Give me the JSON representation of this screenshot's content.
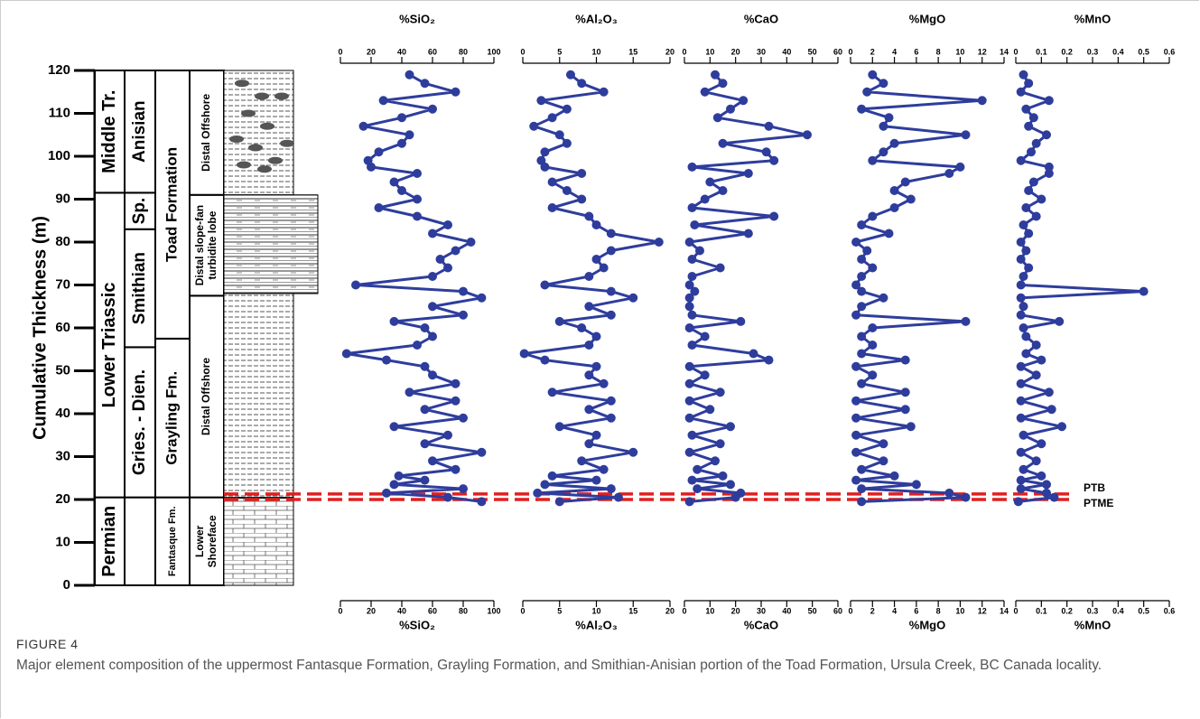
{
  "chart_data": [
    {
      "type": "line",
      "title": "%SiO₂",
      "color": "#2e3d9c",
      "xlim": [
        0,
        100
      ],
      "xticks": [
        0,
        20,
        40,
        60,
        80,
        100
      ],
      "ylim": [
        0,
        120
      ],
      "y": [
        19.5,
        20.5,
        21.5,
        22.5,
        23.5,
        24.5,
        25.5,
        27,
        29,
        31,
        33,
        35,
        37,
        39,
        41,
        43,
        45,
        47,
        49,
        51,
        52.5,
        54,
        56,
        58,
        60,
        61.5,
        63,
        65,
        67,
        68.5,
        70,
        72,
        74,
        76,
        78,
        80,
        82,
        84,
        86,
        88,
        90,
        92,
        94,
        96,
        97.5,
        99,
        101,
        103,
        105,
        107,
        109,
        111,
        113,
        115,
        117,
        119
      ],
      "values": [
        92,
        70,
        30,
        80,
        35,
        55,
        38,
        75,
        60,
        92,
        55,
        70,
        35,
        80,
        55,
        75,
        45,
        75,
        60,
        55,
        30,
        4,
        50,
        60,
        55,
        35,
        80,
        60,
        92,
        80,
        10,
        60,
        70,
        65,
        75,
        85,
        60,
        70,
        50,
        25,
        50,
        40,
        35,
        50,
        20,
        18,
        25,
        40,
        45,
        15,
        40,
        60,
        28,
        75,
        55,
        45
      ]
    },
    {
      "type": "line",
      "title": "%Al₂O₃",
      "color": "#2e3d9c",
      "xlim": [
        0,
        20
      ],
      "xticks": [
        0,
        5,
        10,
        15,
        20
      ],
      "ylim": [
        0,
        120
      ],
      "y": [
        19.5,
        20.5,
        21.5,
        22.5,
        23.5,
        24.5,
        25.5,
        27,
        29,
        31,
        33,
        35,
        37,
        39,
        41,
        43,
        45,
        47,
        49,
        51,
        52.5,
        54,
        56,
        58,
        60,
        61.5,
        63,
        65,
        67,
        68.5,
        70,
        72,
        74,
        76,
        78,
        80,
        82,
        84,
        86,
        88,
        90,
        92,
        94,
        96,
        97.5,
        99,
        101,
        103,
        105,
        107,
        109,
        111,
        113,
        115,
        117,
        119
      ],
      "values": [
        5,
        13,
        2,
        12,
        3,
        10,
        4,
        11,
        8,
        15,
        9,
        10,
        5,
        12,
        9,
        12,
        4,
        11,
        9,
        10,
        3,
        0.2,
        9,
        10,
        8,
        5,
        12,
        9,
        15,
        12,
        3,
        9,
        11,
        10,
        12,
        18.5,
        12,
        10,
        9,
        4,
        8,
        6,
        4,
        8,
        3,
        2.5,
        3,
        6,
        5,
        1.5,
        4,
        6,
        2.5,
        11,
        8,
        6.5
      ]
    },
    {
      "type": "line",
      "title": "%CaO",
      "color": "#2e3d9c",
      "xlim": [
        0,
        60
      ],
      "xticks": [
        0,
        10,
        20,
        30,
        40,
        50,
        60
      ],
      "ylim": [
        0,
        120
      ],
      "y": [
        19.5,
        20.5,
        21.5,
        22.5,
        23.5,
        24.5,
        25.5,
        27,
        29,
        31,
        33,
        35,
        37,
        39,
        41,
        43,
        45,
        47,
        49,
        51,
        52.5,
        54,
        56,
        58,
        60,
        61.5,
        63,
        65,
        67,
        68.5,
        70,
        72,
        74,
        76,
        78,
        80,
        82,
        84,
        86,
        88,
        90,
        92,
        94,
        96,
        97.5,
        99,
        101,
        103,
        105,
        107,
        109,
        111,
        113,
        115,
        117,
        119
      ],
      "values": [
        2,
        20,
        22,
        5,
        18,
        3,
        15,
        5,
        12,
        2,
        14,
        3,
        18,
        2,
        10,
        2,
        14,
        2,
        8,
        2,
        33,
        27,
        3,
        8,
        2,
        22,
        3,
        2,
        2,
        4,
        2,
        3,
        14,
        3,
        6,
        2,
        25,
        4,
        35,
        3,
        8,
        15,
        10,
        25,
        3,
        35,
        32,
        15,
        48,
        33,
        13,
        18,
        23,
        8,
        15,
        12
      ]
    },
    {
      "type": "line",
      "title": "%MgO",
      "color": "#2e3d9c",
      "xlim": [
        0,
        14
      ],
      "xticks": [
        0,
        2,
        4,
        6,
        8,
        10,
        12,
        14
      ],
      "ylim": [
        0,
        120
      ],
      "y": [
        19.5,
        20.5,
        21.5,
        22.5,
        23.5,
        24.5,
        25.5,
        27,
        29,
        31,
        33,
        35,
        37,
        39,
        41,
        43,
        45,
        47,
        49,
        51,
        52.5,
        54,
        56,
        58,
        60,
        61.5,
        63,
        65,
        67,
        68.5,
        70,
        72,
        74,
        76,
        78,
        80,
        82,
        84,
        86,
        88,
        90,
        92,
        94,
        96,
        97.5,
        99,
        101,
        103,
        105,
        107,
        109,
        111,
        113,
        115,
        117,
        119
      ],
      "values": [
        1,
        10.5,
        9,
        1,
        6,
        0.5,
        4,
        1,
        3,
        0.5,
        3,
        0.5,
        5.5,
        0.5,
        5,
        0.5,
        5,
        1,
        2,
        0.5,
        5,
        1,
        2,
        1,
        2,
        10.5,
        0.5,
        1,
        3,
        1,
        0.5,
        1,
        2,
        1,
        1.5,
        0.5,
        3.5,
        1,
        2,
        4,
        5.5,
        4,
        5,
        9,
        10,
        2,
        3,
        4,
        10.5,
        3,
        3.5,
        1,
        12,
        1.5,
        3,
        2
      ]
    },
    {
      "type": "line",
      "title": "%MnO",
      "color": "#2e3d9c",
      "xlim": [
        0,
        0.6
      ],
      "xticks": [
        0,
        0.1,
        0.2,
        0.3,
        0.4,
        0.5,
        0.6
      ],
      "ylim": [
        0,
        120
      ],
      "y": [
        19.5,
        20.5,
        21.5,
        22.5,
        23.5,
        24.5,
        25.5,
        27,
        29,
        31,
        33,
        35,
        37,
        39,
        41,
        43,
        45,
        47,
        49,
        51,
        52.5,
        54,
        56,
        58,
        60,
        61.5,
        63,
        65,
        67,
        68.5,
        70,
        72,
        74,
        76,
        78,
        80,
        82,
        84,
        86,
        88,
        90,
        92,
        94,
        96,
        97.5,
        99,
        101,
        103,
        105,
        107,
        109,
        111,
        113,
        115,
        117,
        119
      ],
      "values": [
        0.01,
        0.15,
        0.12,
        0.02,
        0.12,
        0.02,
        0.1,
        0.03,
        0.08,
        0.02,
        0.1,
        0.03,
        0.18,
        0.02,
        0.14,
        0.02,
        0.13,
        0.02,
        0.08,
        0.02,
        0.1,
        0.04,
        0.08,
        0.04,
        0.03,
        0.17,
        0.02,
        0.03,
        0.02,
        0.5,
        0.02,
        0.03,
        0.05,
        0.02,
        0.04,
        0.02,
        0.05,
        0.03,
        0.08,
        0.04,
        0.1,
        0.05,
        0.07,
        0.13,
        0.13,
        0.02,
        0.06,
        0.08,
        0.12,
        0.05,
        0.07,
        0.04,
        0.13,
        0.02,
        0.05,
        0.03
      ]
    }
  ],
  "depth_axis": {
    "label": "Cumulative Thickness (m)",
    "ylim": [
      0,
      120
    ],
    "yticks": [
      0,
      10,
      20,
      30,
      40,
      50,
      60,
      70,
      80,
      90,
      100,
      110,
      120
    ]
  },
  "markers": [
    {
      "label": "PTB",
      "depth": 21.3
    },
    {
      "label": "PTME",
      "depth": 20
    }
  ],
  "stratigraphy": {
    "series": [
      "Permian",
      "Lower Triassic",
      "Middle Tr."
    ],
    "stages": [
      "Gries. - Dien.",
      "Smithian",
      "Sp.",
      "Anisian"
    ],
    "formations": [
      "Fantasque Fm.",
      "Grayling Fm.",
      "Toad Formation"
    ],
    "facies": [
      [
        "Lower",
        "Shoreface"
      ],
      [
        "Distal Offshore"
      ],
      [
        "Distal slope-fan",
        "turbidite lobe"
      ],
      [
        "Distal Offshore"
      ]
    ]
  },
  "caption": {
    "label": "FIGURE 4",
    "text": "Major element composition of the uppermost Fantasque Formation, Grayling Formation, and Smithian-Anisian portion of the Toad Formation, Ursula Creek, BC Canada locality."
  }
}
